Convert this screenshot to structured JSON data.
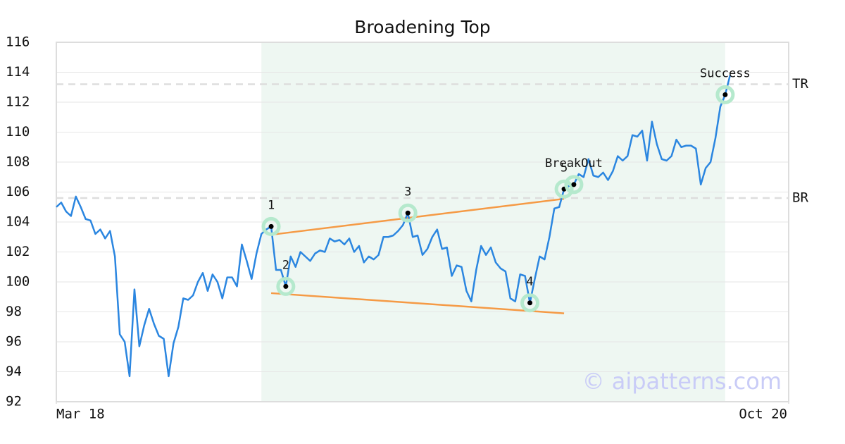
{
  "chart_data": {
    "type": "line",
    "title": "Broadening Top",
    "watermark": "© aipatterns.com",
    "xlim": [
      0,
      150
    ],
    "xticks": [
      {
        "value": 0,
        "label": "Mar 18"
      },
      {
        "value": 150,
        "label": "Oct 20"
      }
    ],
    "ylim": [
      92,
      116
    ],
    "yticks": [
      92,
      94,
      96,
      98,
      100,
      102,
      104,
      106,
      108,
      110,
      112,
      114,
      116
    ],
    "grid": true,
    "highlight_range": [
      42,
      137
    ],
    "highlight_color": "#eef7f2",
    "series": [
      {
        "color": "#2b86e0",
        "values": [
          105.0,
          105.3,
          104.7,
          104.4,
          105.7,
          105.0,
          104.2,
          104.1,
          103.2,
          103.5,
          102.9,
          103.4,
          101.7,
          96.5,
          96.0,
          93.7,
          99.5,
          95.7,
          97.1,
          98.2,
          97.2,
          96.4,
          96.2,
          93.7,
          95.9,
          97.0,
          98.9,
          98.8,
          99.1,
          100.0,
          100.6,
          99.4,
          100.5,
          100.0,
          98.9,
          100.3,
          100.3,
          99.7,
          102.5,
          101.4,
          100.2,
          101.9,
          103.2,
          103.5,
          103.7,
          100.8,
          100.8,
          99.7,
          101.7,
          101.0,
          102.0,
          101.7,
          101.4,
          101.9,
          102.1,
          102.0,
          102.9,
          102.7,
          102.8,
          102.5,
          102.9,
          102.0,
          102.4,
          101.3,
          101.7,
          101.5,
          101.8,
          103.0,
          103.0,
          103.1,
          103.4,
          103.8,
          104.6,
          103.0,
          103.1,
          101.8,
          102.2,
          103.0,
          103.5,
          102.2,
          102.3,
          100.4,
          101.1,
          101.0,
          99.4,
          98.7,
          100.8,
          102.4,
          101.8,
          102.3,
          101.3,
          100.9,
          100.7,
          98.9,
          98.7,
          100.5,
          100.4,
          98.6,
          100.2,
          101.7,
          101.5,
          103.0,
          104.9,
          105.0,
          106.2,
          106.4,
          106.5,
          107.2,
          107.0,
          108.2,
          107.1,
          107.0,
          107.3,
          106.8,
          107.4,
          108.4,
          108.1,
          108.4,
          109.8,
          109.7,
          110.1,
          108.1,
          110.7,
          109.2,
          108.2,
          108.1,
          108.4,
          109.5,
          109.0,
          109.1,
          109.1,
          108.9,
          106.5,
          107.6,
          108.0,
          109.6,
          111.7,
          112.5,
          113.8
        ]
      }
    ],
    "trend_lines": [
      {
        "color": "#f59a45",
        "x": [
          44,
          104
        ],
        "y": [
          103.15,
          105.55
        ]
      },
      {
        "color": "#f59a45",
        "x": [
          44,
          104
        ],
        "y": [
          99.25,
          97.9
        ]
      }
    ],
    "levels": [
      {
        "label": "TR",
        "value": 113.2
      },
      {
        "label": "BR",
        "value": 105.6
      }
    ],
    "points": [
      {
        "label": "1",
        "x": 44,
        "y": 103.7
      },
      {
        "label": "2",
        "x": 47,
        "y": 99.7
      },
      {
        "label": "3",
        "x": 72,
        "y": 104.6
      },
      {
        "label": "4",
        "x": 97,
        "y": 98.6
      },
      {
        "label": "5",
        "x": 104,
        "y": 106.2
      },
      {
        "label": "BreakOut",
        "x": 106,
        "y": 106.5
      },
      {
        "label": "Success",
        "x": 137,
        "y": 112.5
      }
    ]
  }
}
